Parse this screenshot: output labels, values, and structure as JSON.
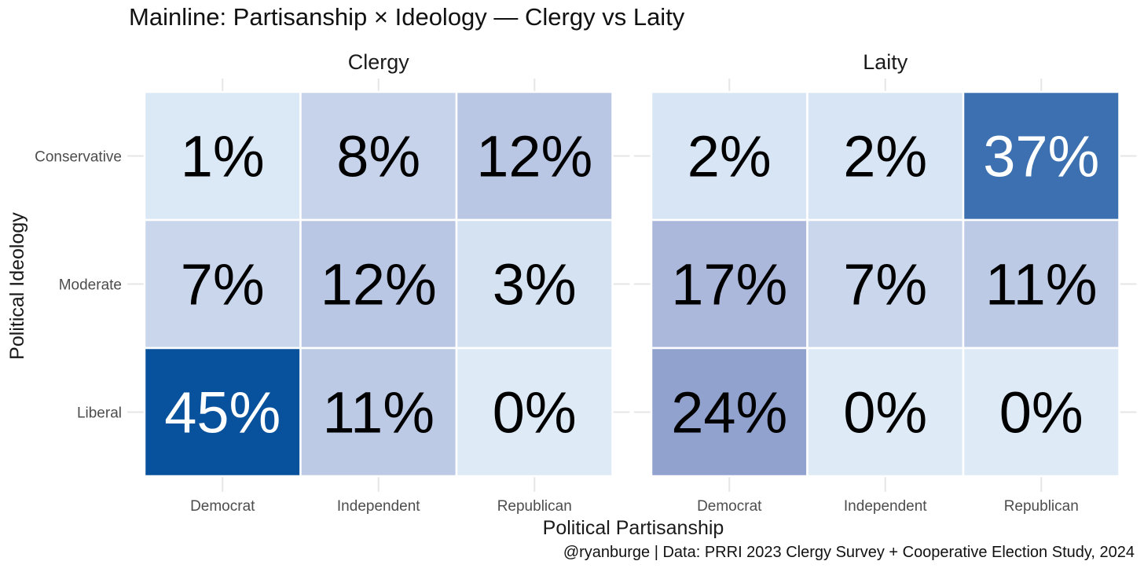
{
  "title": "Mainline: Partisanship × Ideology — Clergy vs Laity",
  "caption": "@ryanburge | Data: PRRI 2023 Clergy Survey + Cooperative Election Study, 2024",
  "chart_data": {
    "type": "heatmap",
    "xlabel": "Political Partisanship",
    "ylabel": "Political Ideology",
    "x_categories": [
      "Democrat",
      "Independent",
      "Republican"
    ],
    "y_categories": [
      "Conservative",
      "Moderate",
      "Liberal"
    ],
    "value_format": "percent",
    "color_scale": {
      "low": "#deebf7",
      "mid": "#9ba8d3",
      "high": "#08519c",
      "max_value": 45
    },
    "panels": [
      {
        "name": "Clergy",
        "values": [
          [
            1,
            8,
            12
          ],
          [
            7,
            12,
            3
          ],
          [
            45,
            11,
            0
          ]
        ]
      },
      {
        "name": "Laity",
        "values": [
          [
            2,
            2,
            37
          ],
          [
            17,
            7,
            11
          ],
          [
            24,
            0,
            0
          ]
        ]
      }
    ]
  }
}
